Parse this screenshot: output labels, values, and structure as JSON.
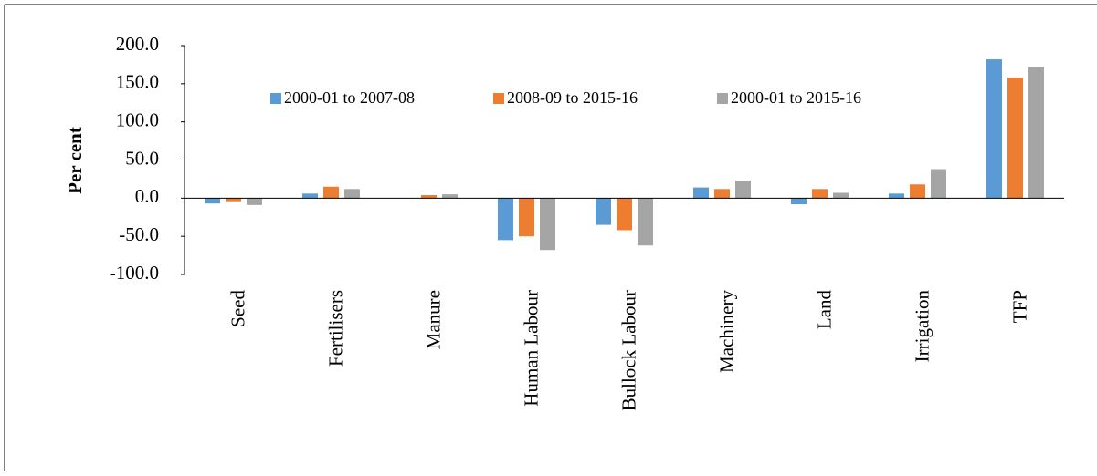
{
  "chart_data": {
    "type": "bar",
    "y_label": "Per cent",
    "categories": [
      "Seed",
      "Fertilisers",
      "Manure",
      "Human Labour",
      "Bullock Labour",
      "Machinery",
      "Land",
      "Irrigation",
      "TFP"
    ],
    "series": [
      {
        "name": "2000-01 to 2007-08",
        "color": "#5b9bd5",
        "values": [
          -7,
          6,
          0,
          -55,
          -35,
          14,
          -8,
          6,
          182
        ]
      },
      {
        "name": "2008-09 to 2015-16",
        "color": "#ed7d31",
        "values": [
          -4,
          15,
          4,
          -50,
          -42,
          12,
          12,
          18,
          158
        ]
      },
      {
        "name": "2000-01 to 2015-16",
        "color": "#a5a5a5",
        "values": [
          -9,
          12,
          5,
          -68,
          -62,
          23,
          7,
          38,
          172
        ]
      }
    ],
    "ylim": [
      -100,
      200
    ],
    "yticks": [
      {
        "value": -100,
        "label": "-100.0"
      },
      {
        "value": -50,
        "label": "-50.0"
      },
      {
        "value": 0,
        "label": "0.0"
      },
      {
        "value": 50,
        "label": "50.0"
      },
      {
        "value": 100,
        "label": "100.0"
      },
      {
        "value": 150,
        "label": "150.0"
      },
      {
        "value": 200,
        "label": "200.0"
      }
    ],
    "grid": false,
    "legend": "top"
  }
}
